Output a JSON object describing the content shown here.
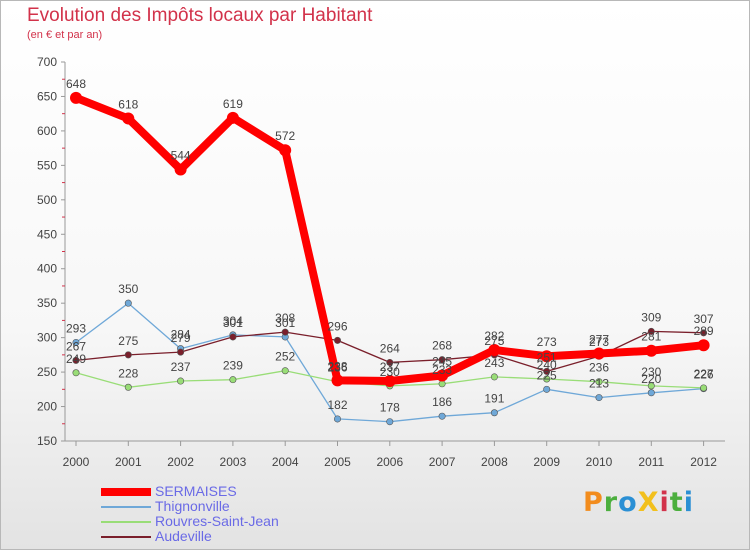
{
  "chart_data": {
    "type": "line",
    "title": "Evolution des Impôts locaux par Habitant",
    "subtitle": "(en € et par an)",
    "xlabel": "",
    "ylabel": "",
    "x": [
      "2000",
      "2001",
      "2002",
      "2003",
      "2004",
      "2005",
      "2006",
      "2007",
      "2008",
      "2009",
      "2010",
      "2011",
      "2012"
    ],
    "ylim": [
      150,
      700
    ],
    "yticks": [
      "150",
      "200",
      "250",
      "300",
      "350",
      "400",
      "450",
      "500",
      "550",
      "600",
      "650",
      "700"
    ],
    "grid": false,
    "legend_position": "bottom-left",
    "series": [
      {
        "name": "SERMAISES",
        "color": "#ff0000",
        "values": [
          648,
          618,
          544,
          619,
          572,
          238,
          237,
          245,
          282,
          273,
          277,
          281,
          289
        ]
      },
      {
        "name": "Thignonville",
        "color": "#6fa8d8",
        "values": [
          293,
          350,
          284,
          304,
          301,
          182,
          178,
          186,
          191,
          225,
          213,
          220,
          226
        ]
      },
      {
        "name": "Rouvres-Saint-Jean",
        "color": "#99dd77",
        "values": [
          249,
          228,
          237,
          239,
          252,
          236,
          230,
          233,
          243,
          240,
          236,
          230,
          227
        ]
      },
      {
        "name": "Audeville",
        "color": "#7a1f2b",
        "values": [
          267,
          275,
          279,
          301,
          308,
          296,
          264,
          268,
          275,
          251,
          273,
          309,
          307
        ]
      }
    ]
  },
  "logo_text": "ProXiti",
  "logo_colors": [
    "#f28c1d",
    "#4caf3e",
    "#2a8fd4",
    "#f2c01d",
    "#d2324a",
    "#4caf3e",
    "#2a8fd4"
  ]
}
